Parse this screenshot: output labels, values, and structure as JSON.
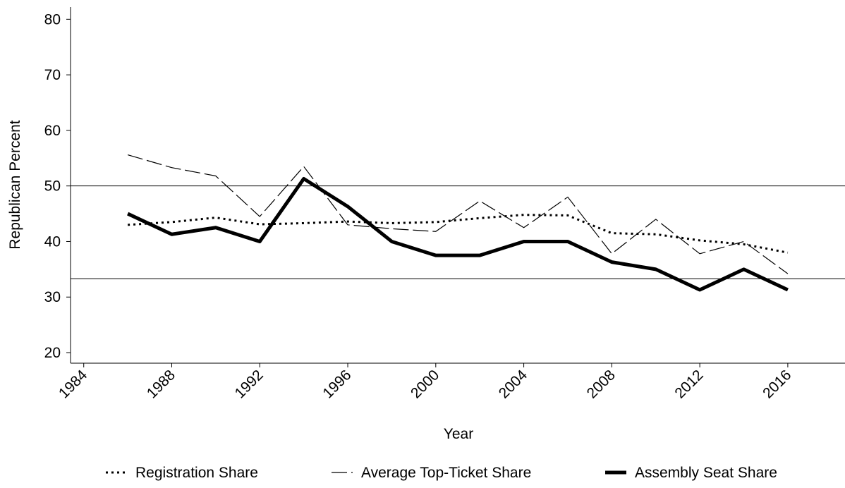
{
  "chart_data": {
    "type": "line",
    "x_label": "Year",
    "y_label": "Republican Percent",
    "x": [
      1986,
      1988,
      1990,
      1992,
      1994,
      1996,
      1998,
      2000,
      2002,
      2004,
      2006,
      2008,
      2010,
      2012,
      2014,
      2016
    ],
    "series": [
      {
        "name": "Registration Share",
        "color": "#000000",
        "style": "dotted",
        "width": 3,
        "values": [
          43.0,
          43.5,
          44.3,
          43.1,
          43.3,
          43.6,
          43.3,
          43.5,
          44.2,
          44.8,
          44.7,
          41.5,
          41.3,
          40.2,
          39.5,
          38.0
        ]
      },
      {
        "name": "Average Top-Ticket Share",
        "color": "#000000",
        "style": "dashed",
        "width": 1.2,
        "values": [
          55.6,
          53.3,
          51.8,
          44.5,
          53.5,
          43.0,
          42.3,
          41.8,
          47.3,
          42.5,
          48.0,
          37.8,
          44.0,
          37.8,
          40.0,
          34.2
        ]
      },
      {
        "name": "Assembly Seat Share",
        "color": "#000000",
        "style": "solid",
        "width": 5,
        "values": [
          45.0,
          41.3,
          42.5,
          40.0,
          51.3,
          46.3,
          40.0,
          37.5,
          37.5,
          40.0,
          40.0,
          36.3,
          35.0,
          31.3,
          35.0,
          31.3
        ]
      }
    ],
    "reference_lines": [
      50,
      33.3
    ],
    "xlim": [
      1983.4,
      2018.6
    ],
    "xticks": [
      1984,
      1988,
      1992,
      1996,
      2000,
      2004,
      2008,
      2012,
      2016
    ],
    "ylim": [
      18.1,
      82.2
    ],
    "yticks": [
      20,
      30,
      40,
      50,
      60,
      70,
      80
    ],
    "legend": "bottom"
  }
}
